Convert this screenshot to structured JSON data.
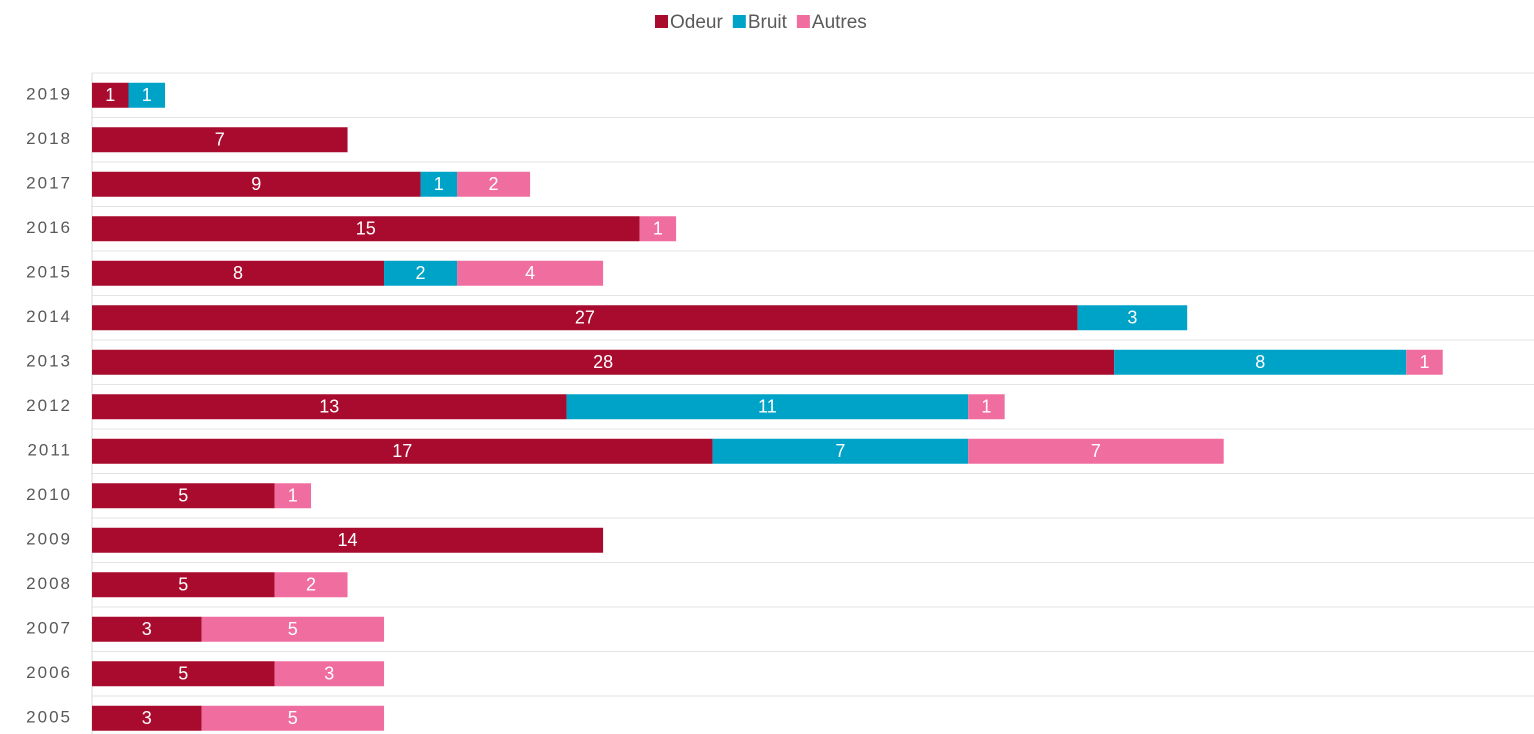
{
  "chart_data": {
    "type": "stacked-barh",
    "categories": [
      "2019",
      "2018",
      "2017",
      "2016",
      "2015",
      "2014",
      "2013",
      "2012",
      "2011",
      "2010",
      "2009",
      "2008",
      "2007",
      "2006",
      "2005"
    ],
    "series": [
      {
        "name": "Odeur",
        "color": "#a90b2f",
        "values": [
          1,
          7,
          9,
          15,
          8,
          27,
          28,
          13,
          17,
          5,
          14,
          5,
          3,
          5,
          3
        ]
      },
      {
        "name": "Bruit",
        "color": "#00a3c8",
        "values": [
          1,
          null,
          1,
          null,
          2,
          3,
          8,
          11,
          7,
          null,
          null,
          null,
          null,
          null,
          null
        ]
      },
      {
        "name": "Autres",
        "color": "#f06e9f",
        "values": [
          null,
          null,
          2,
          1,
          4,
          null,
          1,
          1,
          7,
          1,
          null,
          2,
          5,
          3,
          5
        ]
      }
    ],
    "xlim": [
      0,
      39.5
    ],
    "legend": "top"
  }
}
